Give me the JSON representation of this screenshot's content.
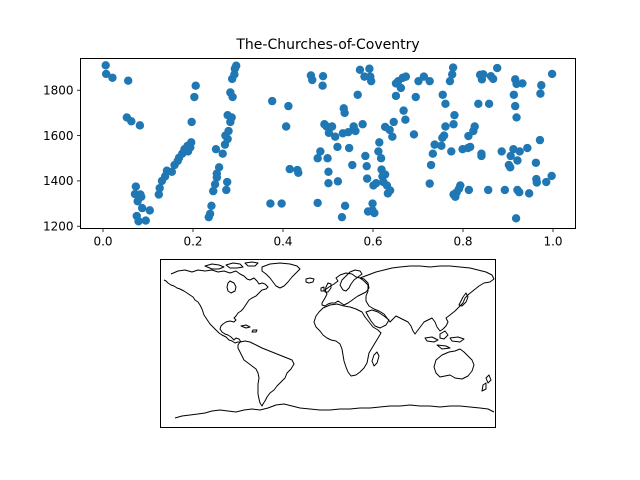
{
  "chart_data": [
    {
      "type": "scatter",
      "title": "The-Churches-of-Coventry",
      "xlabel": "",
      "ylabel": "",
      "xlim": [
        -0.05,
        1.05
      ],
      "ylim": [
        1190,
        1940
      ],
      "x_ticks": [
        0.0,
        0.2,
        0.4,
        0.6,
        0.8,
        1.0
      ],
      "x_tick_labels": [
        "0.0",
        "0.2",
        "0.4",
        "0.6",
        "0.8",
        "1.0"
      ],
      "y_ticks": [
        1200,
        1400,
        1600,
        1800
      ],
      "y_tick_labels": [
        "1200",
        "1400",
        "1600",
        "1800"
      ],
      "grid": false,
      "marker_color": "#1f77b4",
      "points": [
        [
          0.006,
          1910
        ],
        [
          0.007,
          1872
        ],
        [
          0.021,
          1855
        ],
        [
          0.056,
          1842
        ],
        [
          0.053,
          1680
        ],
        [
          0.063,
          1663
        ],
        [
          0.082,
          1645
        ],
        [
          0.073,
          1375
        ],
        [
          0.071,
          1342
        ],
        [
          0.083,
          1340
        ],
        [
          0.085,
          1330
        ],
        [
          0.077,
          1310
        ],
        [
          0.087,
          1280
        ],
        [
          0.075,
          1245
        ],
        [
          0.079,
          1222
        ],
        [
          0.095,
          1225
        ],
        [
          0.104,
          1270
        ],
        [
          0.124,
          1340
        ],
        [
          0.126,
          1368
        ],
        [
          0.131,
          1400
        ],
        [
          0.138,
          1420
        ],
        [
          0.142,
          1445
        ],
        [
          0.153,
          1440
        ],
        [
          0.159,
          1470
        ],
        [
          0.166,
          1488
        ],
        [
          0.169,
          1502
        ],
        [
          0.176,
          1520
        ],
        [
          0.181,
          1540
        ],
        [
          0.188,
          1555
        ],
        [
          0.196,
          1570
        ],
        [
          0.189,
          1530
        ],
        [
          0.194,
          1548
        ],
        [
          0.197,
          1660
        ],
        [
          0.203,
          1770
        ],
        [
          0.206,
          1820
        ],
        [
          0.235,
          1240
        ],
        [
          0.238,
          1255
        ],
        [
          0.241,
          1290
        ],
        [
          0.245,
          1355
        ],
        [
          0.249,
          1385
        ],
        [
          0.253,
          1415
        ],
        [
          0.253,
          1432
        ],
        [
          0.258,
          1460
        ],
        [
          0.251,
          1540
        ],
        [
          0.266,
          1520
        ],
        [
          0.271,
          1560
        ],
        [
          0.277,
          1585
        ],
        [
          0.272,
          1600
        ],
        [
          0.279,
          1620
        ],
        [
          0.283,
          1660
        ],
        [
          0.286,
          1680
        ],
        [
          0.277,
          1690
        ],
        [
          0.283,
          1790
        ],
        [
          0.288,
          1770
        ],
        [
          0.287,
          1850
        ],
        [
          0.292,
          1870
        ],
        [
          0.293,
          1895
        ],
        [
          0.296,
          1908
        ],
        [
          0.274,
          1360
        ],
        [
          0.276,
          1395
        ],
        [
          0.372,
          1300
        ],
        [
          0.397,
          1300
        ],
        [
          0.376,
          1752
        ],
        [
          0.407,
          1640
        ],
        [
          0.412,
          1730
        ],
        [
          0.415,
          1452
        ],
        [
          0.432,
          1448
        ],
        [
          0.434,
          1436
        ],
        [
          0.462,
          1865
        ],
        [
          0.465,
          1845
        ],
        [
          0.477,
          1500
        ],
        [
          0.483,
          1530
        ],
        [
          0.477,
          1303
        ],
        [
          0.488,
          1820
        ],
        [
          0.489,
          1862
        ],
        [
          0.492,
          1650
        ],
        [
          0.497,
          1640
        ],
        [
          0.502,
          1612
        ],
        [
          0.499,
          1500
        ],
        [
          0.501,
          1440
        ],
        [
          0.501,
          1390
        ],
        [
          0.509,
          1640
        ],
        [
          0.516,
          1595
        ],
        [
          0.522,
          1398
        ],
        [
          0.521,
          1550
        ],
        [
          0.531,
          1240
        ],
        [
          0.533,
          1610
        ],
        [
          0.535,
          1720
        ],
        [
          0.537,
          1700
        ],
        [
          0.538,
          1290
        ],
        [
          0.545,
          1615
        ],
        [
          0.547,
          1545
        ],
        [
          0.554,
          1470
        ],
        [
          0.557,
          1640
        ],
        [
          0.561,
          1620
        ],
        [
          0.566,
          1780
        ],
        [
          0.571,
          1890
        ],
        [
          0.581,
          1860
        ],
        [
          0.577,
          1650
        ],
        [
          0.583,
          1510
        ],
        [
          0.586,
          1465
        ],
        [
          0.587,
          1410
        ],
        [
          0.589,
          1265
        ],
        [
          0.592,
          1895
        ],
        [
          0.594,
          1860
        ],
        [
          0.596,
          1840
        ],
        [
          0.599,
          1300
        ],
        [
          0.603,
          1258
        ],
        [
          0.599,
          1270
        ],
        [
          0.601,
          1380
        ],
        [
          0.607,
          1390
        ],
        [
          0.614,
          1570
        ],
        [
          0.612,
          1530
        ],
        [
          0.618,
          1500
        ],
        [
          0.619,
          1450
        ],
        [
          0.621,
          1420
        ],
        [
          0.623,
          1395
        ],
        [
          0.627,
          1428
        ],
        [
          0.631,
          1380
        ],
        [
          0.633,
          1345
        ],
        [
          0.638,
          1358
        ],
        [
          0.627,
          1638
        ],
        [
          0.637,
          1625
        ],
        [
          0.643,
          1595
        ],
        [
          0.646,
          1660
        ],
        [
          0.651,
          1775
        ],
        [
          0.651,
          1830
        ],
        [
          0.656,
          1840
        ],
        [
          0.662,
          1810
        ],
        [
          0.666,
          1855
        ],
        [
          0.673,
          1860
        ],
        [
          0.668,
          1710
        ],
        [
          0.672,
          1670
        ],
        [
          0.691,
          1605
        ],
        [
          0.695,
          1770
        ],
        [
          0.701,
          1840
        ],
        [
          0.713,
          1860
        ],
        [
          0.726,
          1840
        ],
        [
          0.726,
          1388
        ],
        [
          0.729,
          1470
        ],
        [
          0.733,
          1520
        ],
        [
          0.737,
          1560
        ],
        [
          0.752,
          1555
        ],
        [
          0.754,
          1590
        ],
        [
          0.758,
          1600
        ],
        [
          0.761,
          1640
        ],
        [
          0.755,
          1780
        ],
        [
          0.761,
          1740
        ],
        [
          0.771,
          1840
        ],
        [
          0.776,
          1870
        ],
        [
          0.778,
          1900
        ],
        [
          0.781,
          1690
        ],
        [
          0.779,
          1650
        ],
        [
          0.774,
          1530
        ],
        [
          0.779,
          1340
        ],
        [
          0.783,
          1330
        ],
        [
          0.786,
          1350
        ],
        [
          0.791,
          1365
        ],
        [
          0.794,
          1380
        ],
        [
          0.799,
          1540
        ],
        [
          0.811,
          1545
        ],
        [
          0.816,
          1550
        ],
        [
          0.812,
          1598
        ],
        [
          0.813,
          1360
        ],
        [
          0.823,
          1620
        ],
        [
          0.826,
          1640
        ],
        [
          0.834,
          1740
        ],
        [
          0.838,
          1868
        ],
        [
          0.842,
          1848
        ],
        [
          0.845,
          1870
        ],
        [
          0.841,
          1510
        ],
        [
          0.841,
          1520
        ],
        [
          0.856,
          1360
        ],
        [
          0.862,
          1862
        ],
        [
          0.867,
          1850
        ],
        [
          0.858,
          1740
        ],
        [
          0.876,
          1898
        ],
        [
          0.886,
          1530
        ],
        [
          0.893,
          1360
        ],
        [
          0.902,
          1470
        ],
        [
          0.905,
          1460
        ],
        [
          0.906,
          1510
        ],
        [
          0.912,
          1540
        ],
        [
          0.916,
          1848
        ],
        [
          0.919,
          1828
        ],
        [
          0.913,
          1780
        ],
        [
          0.916,
          1730
        ],
        [
          0.919,
          1680
        ],
        [
          0.921,
          1490
        ],
        [
          0.926,
          1530
        ],
        [
          0.921,
          1360
        ],
        [
          0.918,
          1235
        ],
        [
          0.925,
          1350
        ],
        [
          0.932,
          1830
        ],
        [
          0.943,
          1545
        ],
        [
          0.947,
          1345
        ],
        [
          0.962,
          1480
        ],
        [
          0.963,
          1408
        ],
        [
          0.964,
          1393
        ],
        [
          0.971,
          1580
        ],
        [
          0.972,
          1785
        ],
        [
          0.974,
          1822
        ],
        [
          0.985,
          1395
        ],
        [
          0.997,
          1422
        ],
        [
          0.998,
          1872
        ]
      ]
    }
  ],
  "map": {
    "projection": "plate-carree",
    "feature": "coastlines",
    "frame": true
  }
}
